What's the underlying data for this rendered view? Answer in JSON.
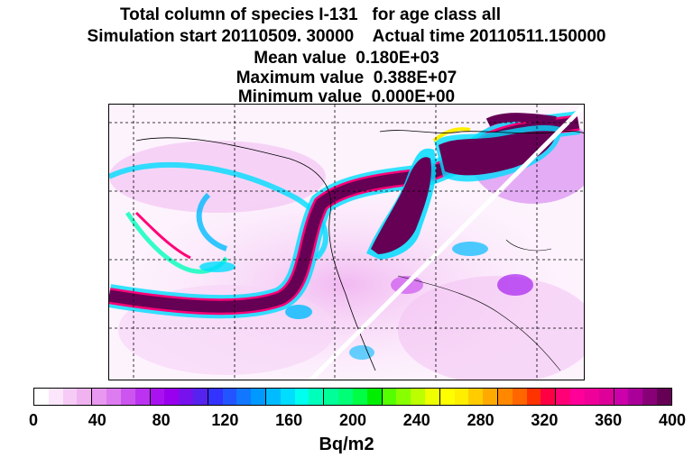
{
  "title": {
    "line1": "Total column of species I-131   for age class all",
    "line2": "Simulation start 20110509. 30000    Actual time 20110511.150000",
    "line3": "Mean value  0.180E+03",
    "line4": "Maximum value  0.388E+07",
    "line5": "Minimum value  0.000E+00"
  },
  "colorbar": {
    "unit": "Bq/m2",
    "tick_labels": [
      "0",
      "40",
      "80",
      "120",
      "160",
      "200",
      "240",
      "280",
      "320",
      "360",
      "400"
    ],
    "colors": [
      "#ffffff",
      "#fbe6fb",
      "#f6ccf6",
      "#f0b3f0",
      "#e898f0",
      "#dd7cf0",
      "#cc55f0",
      "#bb33f0",
      "#aa11f0",
      "#9900ee",
      "#7711ee",
      "#5522ee",
      "#3333ff",
      "#2255ff",
      "#1177ff",
      "#0099ff",
      "#00bbff",
      "#00ddff",
      "#00ffee",
      "#00ffbb",
      "#00ff99",
      "#00ff77",
      "#00ff44",
      "#00ee00",
      "#55ff00",
      "#88ff00",
      "#bbff00",
      "#eeff00",
      "#ffff00",
      "#ffee00",
      "#ffcc00",
      "#ffaa00",
      "#ff8800",
      "#ff6600",
      "#ff3300",
      "#ff0044",
      "#ff0077",
      "#ff0099",
      "#ee0099",
      "#dd0099",
      "#cc00aa",
      "#aa0099",
      "#880077",
      "#660055"
    ]
  }
}
